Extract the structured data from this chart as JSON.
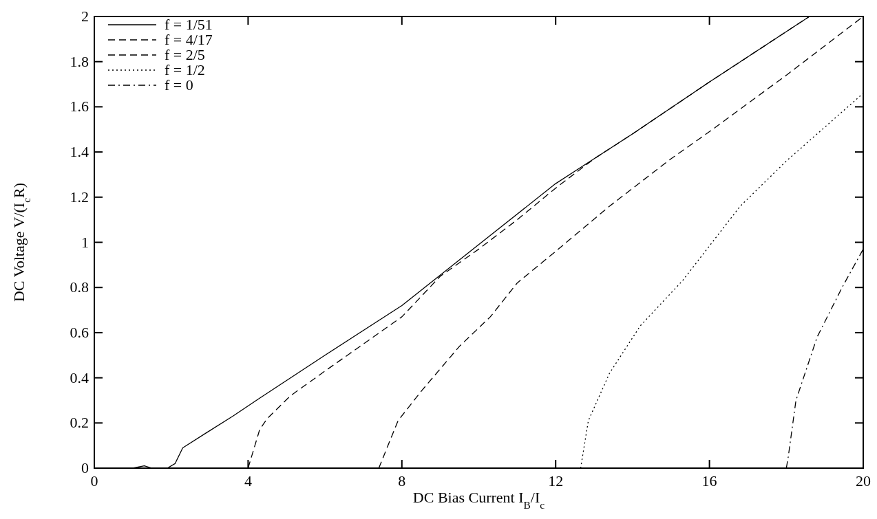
{
  "chart_data": {
    "type": "line",
    "xlabel": "DC Bias Current I$_{B}$/I$_{c}$",
    "ylabel": "DC Voltage V/(I$_{c}$R)",
    "xlim": [
      0,
      20
    ],
    "ylim": [
      0,
      2
    ],
    "xticks": [
      0,
      4,
      8,
      12,
      16,
      20
    ],
    "yticks": [
      0,
      0.2,
      0.4,
      0.6,
      0.8,
      1,
      1.2,
      1.4,
      1.6,
      1.8,
      2
    ],
    "legend": "top left",
    "grid": false,
    "series": [
      {
        "name": "f = 1/51",
        "color": "#000000",
        "line_style": "solid",
        "x": [
          0,
          1,
          1.3,
          1.5,
          1.9,
          2.1,
          2.3,
          2.9,
          3.6,
          4.3,
          6,
          8,
          10,
          12,
          14,
          16,
          18.6
        ],
        "values": [
          0,
          0,
          0.01,
          0,
          0,
          0.02,
          0.09,
          0.155,
          0.23,
          0.31,
          0.5,
          0.72,
          0.99,
          1.26,
          1.48,
          1.71,
          2
        ]
      },
      {
        "name": "f = 4/17",
        "color": "#000000",
        "line_style": "dashed",
        "x": [
          4,
          4.3,
          4.5,
          5.1,
          6,
          7,
          8,
          9,
          10,
          11,
          12,
          13,
          14,
          16,
          18.6
        ],
        "values": [
          0,
          0.17,
          0.22,
          0.32,
          0.43,
          0.55,
          0.67,
          0.85,
          0.97,
          1.1,
          1.24,
          1.37,
          1.48,
          1.71,
          2
        ]
      },
      {
        "name": "f = 2/5",
        "color": "#000000",
        "line_style": "dashed",
        "x": [
          7.4,
          7.9,
          8.5,
          9.5,
          10.3,
          11,
          12,
          13.4,
          15,
          16,
          18,
          20
        ],
        "values": [
          0,
          0.21,
          0.34,
          0.54,
          0.67,
          0.82,
          0.96,
          1.16,
          1.37,
          1.49,
          1.74,
          2
        ]
      },
      {
        "name": "f = 1/2",
        "color": "#000000",
        "line_style": "dotted",
        "x": [
          12.65,
          12.85,
          13.4,
          14.2,
          15.3,
          16.8,
          18,
          19,
          20
        ],
        "values": [
          0,
          0.21,
          0.42,
          0.63,
          0.83,
          1.16,
          1.36,
          1.51,
          1.66
        ]
      },
      {
        "name": "f = 0",
        "color": "#000000",
        "line_style": "dashdot",
        "x": [
          18,
          18.05,
          18.25,
          18.8,
          19.45,
          20
        ],
        "values": [
          0,
          0.05,
          0.3,
          0.58,
          0.8,
          0.97
        ]
      }
    ]
  }
}
